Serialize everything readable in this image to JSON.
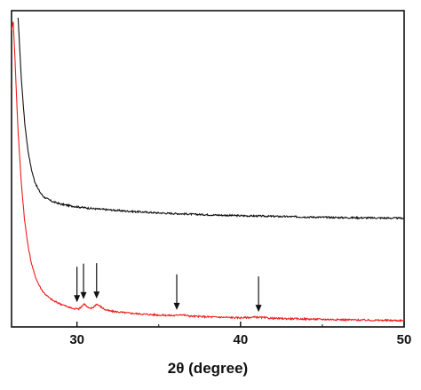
{
  "chart_data": {
    "type": "line",
    "title": "",
    "xlabel": "2θ (degree)",
    "ylabel": "",
    "xlim": [
      26,
      50
    ],
    "ylim": [
      0,
      100
    ],
    "x_ticks": [
      30,
      40,
      50
    ],
    "x_tick_labels": [
      "30",
      "40",
      "50"
    ],
    "y_ticks_shown": false,
    "grid": false,
    "legend": "none",
    "series": [
      {
        "color": "#111111",
        "x": [
          26.4,
          26.6,
          26.8,
          27.0,
          27.2,
          27.4,
          27.6,
          27.8,
          28.0,
          28.5,
          29.0,
          29.5,
          30.0,
          31.0,
          32.0,
          33.0,
          34.0,
          35.0,
          36.0,
          38.0,
          40.0,
          42.0,
          44.0,
          46.0,
          48.0,
          50.0
        ],
        "y": [
          100,
          80,
          66,
          57,
          51,
          47,
          44.5,
          42.8,
          41.6,
          40.2,
          39.4,
          38.9,
          38.5,
          37.9,
          37.5,
          37.1,
          36.8,
          36.5,
          36.3,
          35.9,
          35.6,
          35.4,
          35.2,
          35.0,
          34.9,
          34.8
        ]
      },
      {
        "color": "#ee1c1c",
        "x": [
          26.0,
          26.1,
          26.2,
          26.3,
          26.4,
          26.6,
          26.8,
          27.0,
          27.2,
          27.4,
          27.6,
          27.8,
          28.0,
          28.3,
          28.6,
          29.0,
          29.5,
          29.9,
          30.0,
          30.1,
          30.3,
          30.45,
          30.6,
          30.8,
          31.0,
          31.2,
          31.4,
          31.7,
          32.0,
          33.0,
          34.0,
          35.0,
          36.0,
          36.3,
          37.0,
          38.0,
          40.0,
          41.0,
          42.0,
          44.0,
          46.0,
          48.0,
          50.0
        ],
        "y": [
          96,
          99,
          88,
          75,
          63,
          46,
          34,
          26,
          20.5,
          16.6,
          13.9,
          11.9,
          10.4,
          8.9,
          7.8,
          6.9,
          5.8,
          5.2,
          5.7,
          5.2,
          6.2,
          7.0,
          6.0,
          5.3,
          5.8,
          6.9,
          6.2,
          5.1,
          4.6,
          4.0,
          3.6,
          3.3,
          3.1,
          3.5,
          2.9,
          2.7,
          2.4,
          2.6,
          2.2,
          2.0,
          1.8,
          1.6,
          1.5
        ]
      }
    ],
    "annotations": [
      {
        "type": "arrow-down",
        "x": 30.0
      },
      {
        "type": "arrow-down",
        "x": 30.4
      },
      {
        "type": "arrow-down",
        "x": 31.2
      },
      {
        "type": "arrow-down",
        "x": 36.1
      },
      {
        "type": "arrow-down",
        "x": 41.1
      }
    ]
  }
}
